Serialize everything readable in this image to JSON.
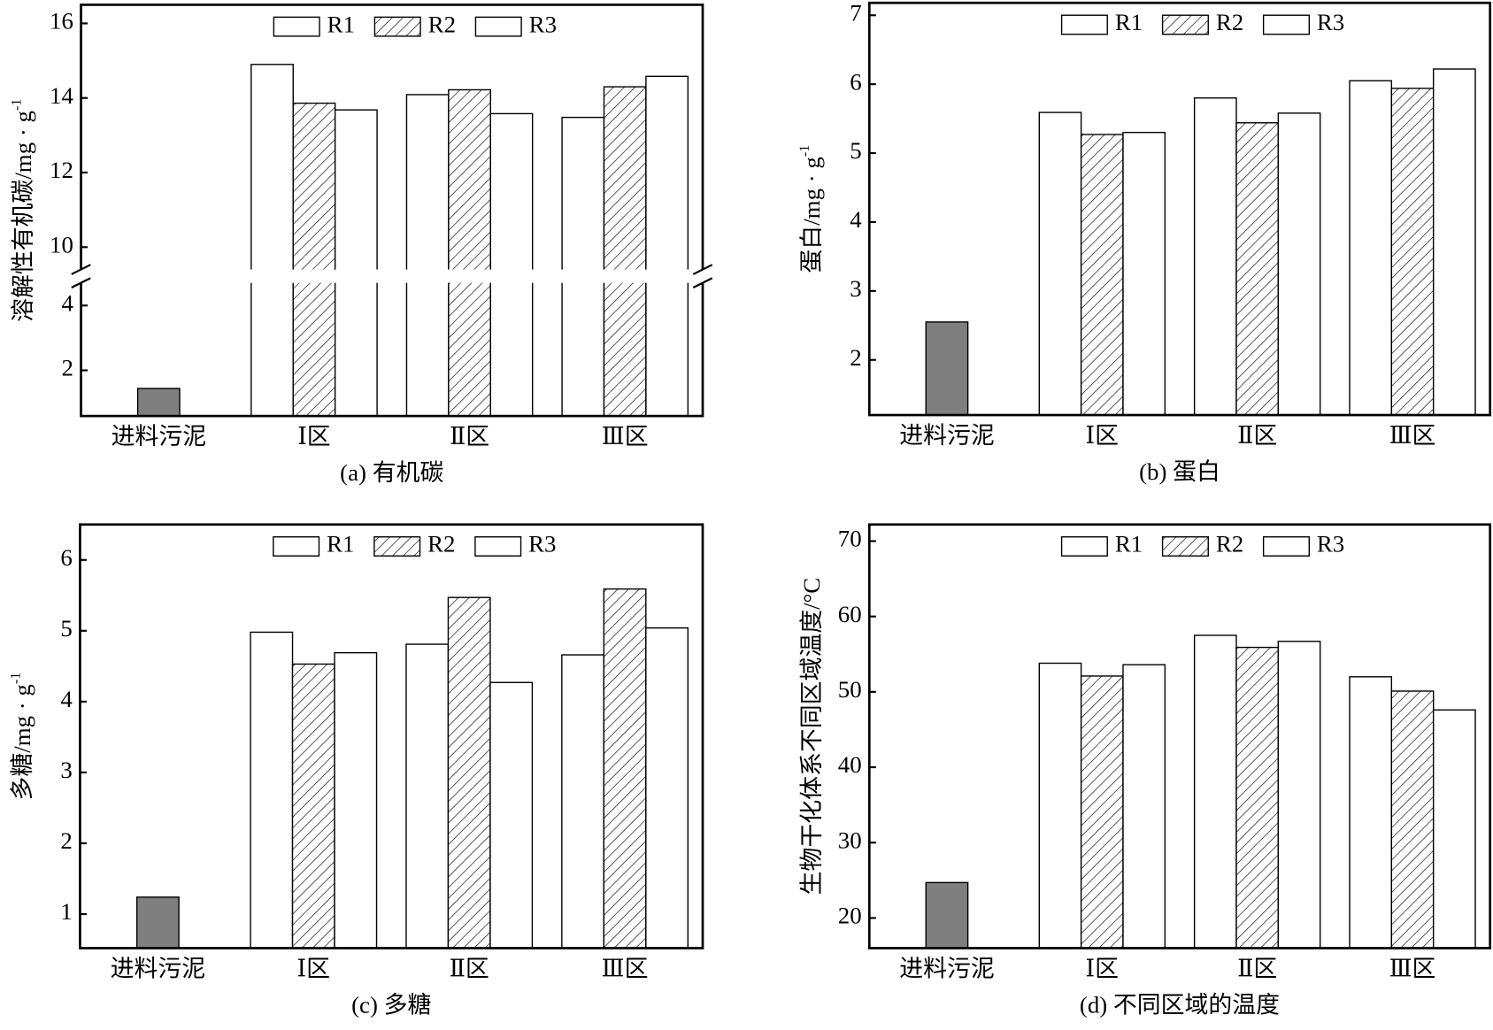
{
  "chart_data": [
    {
      "type": "bar",
      "caption": "(a) 有机碳",
      "ylabel": "溶解性有机碳/mg · g",
      "ylabel_sup": "-1",
      "categories": [
        "进料污泥",
        "Ⅰ区",
        "Ⅱ区",
        "Ⅲ区"
      ],
      "series": [
        {
          "color": "#7f7f7f",
          "values": [
            1.44,
            null,
            null,
            null
          ]
        },
        {
          "name": "R1",
          "color": "#ffffff",
          "values": [
            null,
            14.9,
            14.09,
            13.48
          ]
        },
        {
          "name": "R2",
          "color": "#ffffff",
          "hatch": true,
          "values": [
            null,
            13.86,
            14.22,
            14.3
          ]
        },
        {
          "name": "R3",
          "color": "#ffffff",
          "values": [
            null,
            13.68,
            13.58,
            14.58
          ]
        }
      ],
      "ylim": [
        0.59,
        16.5
      ],
      "ybreak": [
        4.7,
        9.4
      ],
      "yticks": [
        2,
        4,
        10,
        12,
        14,
        16
      ],
      "legend": "upper center"
    },
    {
      "type": "bar",
      "caption": "(b) 蛋白",
      "ylabel": "蛋白/mg · g",
      "ylabel_sup": "-1",
      "categories": [
        "进料污泥",
        "Ⅰ区",
        "Ⅱ区",
        "Ⅲ区"
      ],
      "series": [
        {
          "color": "#7f7f7f",
          "values": [
            2.55,
            null,
            null,
            null
          ]
        },
        {
          "name": "R1",
          "color": "#ffffff",
          "values": [
            null,
            5.59,
            5.8,
            6.05
          ]
        },
        {
          "name": "R2",
          "color": "#ffffff",
          "hatch": true,
          "values": [
            null,
            5.27,
            5.44,
            5.94
          ]
        },
        {
          "name": "R3",
          "color": "#ffffff",
          "values": [
            null,
            5.3,
            5.58,
            6.22
          ]
        }
      ],
      "ylim": [
        1.2,
        7.18
      ],
      "yticks": [
        2,
        3,
        4,
        5,
        6,
        7
      ],
      "legend": "upper center"
    },
    {
      "type": "bar",
      "caption": "(c) 多糖",
      "ylabel": "多糖/mg · g",
      "ylabel_sup": "-1",
      "categories": [
        "进料污泥",
        "Ⅰ区",
        "Ⅱ区",
        "Ⅲ区"
      ],
      "series": [
        {
          "color": "#7f7f7f",
          "values": [
            1.24,
            null,
            null,
            null
          ]
        },
        {
          "name": "R1",
          "color": "#ffffff",
          "values": [
            null,
            4.98,
            4.81,
            4.66
          ]
        },
        {
          "name": "R2",
          "color": "#ffffff",
          "hatch": true,
          "values": [
            null,
            4.53,
            5.47,
            5.59
          ]
        },
        {
          "name": "R3",
          "color": "#ffffff",
          "values": [
            null,
            4.69,
            4.27,
            5.04
          ]
        }
      ],
      "ylim": [
        0.52,
        6.5
      ],
      "yticks": [
        1,
        2,
        3,
        4,
        5,
        6
      ],
      "legend": "upper center"
    },
    {
      "type": "bar",
      "caption": "(d) 不同区域的温度",
      "ylabel": "生物干化体系不同区域温度/°C",
      "categories": [
        "进料污泥",
        "Ⅰ区",
        "Ⅱ区",
        "Ⅲ区"
      ],
      "series": [
        {
          "color": "#7f7f7f",
          "values": [
            24.7,
            null,
            null,
            null
          ]
        },
        {
          "name": "R1",
          "color": "#ffffff",
          "values": [
            null,
            53.8,
            57.5,
            52.0
          ]
        },
        {
          "name": "R2",
          "color": "#ffffff",
          "hatch": true,
          "values": [
            null,
            52.1,
            55.9,
            50.1
          ]
        },
        {
          "name": "R3",
          "color": "#ffffff",
          "values": [
            null,
            53.6,
            56.7,
            47.6
          ]
        }
      ],
      "ylim": [
        16,
        72.2
      ],
      "yticks": [
        20,
        30,
        40,
        50,
        60,
        70
      ],
      "legend": "upper center"
    }
  ]
}
